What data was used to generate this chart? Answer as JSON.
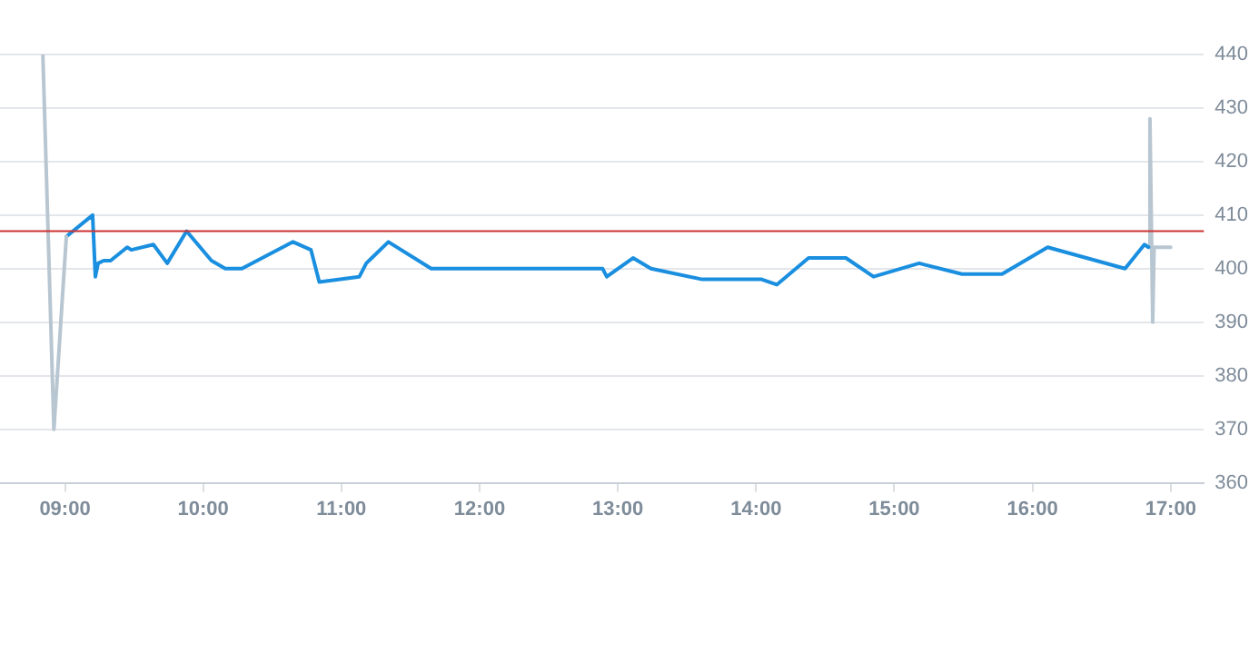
{
  "chart_data": {
    "type": "line",
    "marker": "none",
    "grid": "y",
    "legend": false,
    "xlim": [
      8.53,
      17.24
    ],
    "xticks": [
      {
        "value": 9,
        "label": "09:00"
      },
      {
        "value": 10,
        "label": "10:00"
      },
      {
        "value": 11,
        "label": "11:00"
      },
      {
        "value": 12,
        "label": "12:00"
      },
      {
        "value": 13,
        "label": "13:00"
      },
      {
        "value": 14,
        "label": "14:00"
      },
      {
        "value": 15,
        "label": "15:00"
      },
      {
        "value": 16,
        "label": "16:00"
      },
      {
        "value": 17,
        "label": "17:00"
      }
    ],
    "ylim": [
      360,
      440
    ],
    "yticks": [
      360,
      370,
      380,
      390,
      400,
      410,
      420,
      430,
      440
    ],
    "ref_lines": [
      {
        "axis": "y",
        "value": 407,
        "color": "#cc3333"
      }
    ],
    "series": [
      {
        "color": "#b8c6d1",
        "x": [
          8.84,
          8.92,
          9.01
        ],
        "values": [
          440,
          370,
          406
        ]
      },
      {
        "color": "#1a8fe0",
        "x": [
          9.01,
          9.2,
          9.22,
          9.24,
          9.28,
          9.33,
          9.45,
          9.48,
          9.64,
          9.74,
          9.88,
          10.06,
          10.16,
          10.28,
          10.65,
          10.78,
          10.84,
          11.13,
          11.18,
          11.22,
          11.34,
          11.65,
          12.89,
          12.92,
          13.11,
          13.24,
          13.61,
          14.04,
          14.15,
          14.38,
          14.65,
          14.85,
          15.18,
          15.49,
          15.78,
          16.11,
          16.67,
          16.81,
          16.84
        ],
        "values": [
          406,
          410,
          398.5,
          401,
          401.5,
          401.5,
          404,
          403.5,
          404.5,
          401,
          407,
          401.5,
          400,
          400,
          405,
          403.5,
          397.5,
          398.5,
          401,
          402,
          405,
          400,
          400,
          398.5,
          402,
          400,
          398,
          398,
          397,
          402,
          402,
          398.5,
          401,
          399,
          399,
          404,
          400,
          404.5,
          404
        ]
      },
      {
        "color": "#b8c6d1",
        "x": [
          16.84,
          16.85,
          16.87,
          16.88,
          17.0
        ],
        "values": [
          404,
          428,
          390,
          404,
          404
        ]
      }
    ]
  }
}
